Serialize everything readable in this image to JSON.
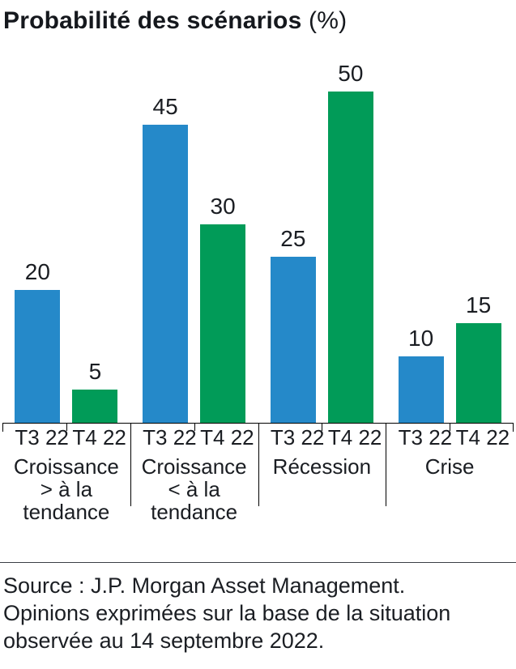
{
  "header": {
    "title_main": "Probabilité des scénarios",
    "title_unit": "(%)"
  },
  "chart_data": {
    "type": "bar",
    "title": "Probabilité des scénarios (%)",
    "categories": [
      "Croissance\n> à la\ntendance",
      "Croissance\n< à la\ntendance",
      "Récession",
      "Crise"
    ],
    "series": [
      {
        "name": "T3 22",
        "color": "#2589c9",
        "values": [
          20,
          45,
          25,
          10
        ]
      },
      {
        "name": "T4 22",
        "color": "#019b58",
        "values": [
          5,
          30,
          50,
          15
        ]
      }
    ],
    "ylim": [
      0,
      50
    ],
    "value_labels_shown": true,
    "legend_position": "none",
    "grid": false,
    "xlabel": "",
    "ylabel": ""
  },
  "footer": {
    "source_text": "Source : J.P. Morgan Asset Management.\nOpinions exprimées sur la base de la situation\nobservée au 14 septembre 2022."
  },
  "colors": {
    "bar_blue": "#2589c9",
    "bar_green": "#019b58",
    "text": "#16191e",
    "axis": "#000000"
  }
}
